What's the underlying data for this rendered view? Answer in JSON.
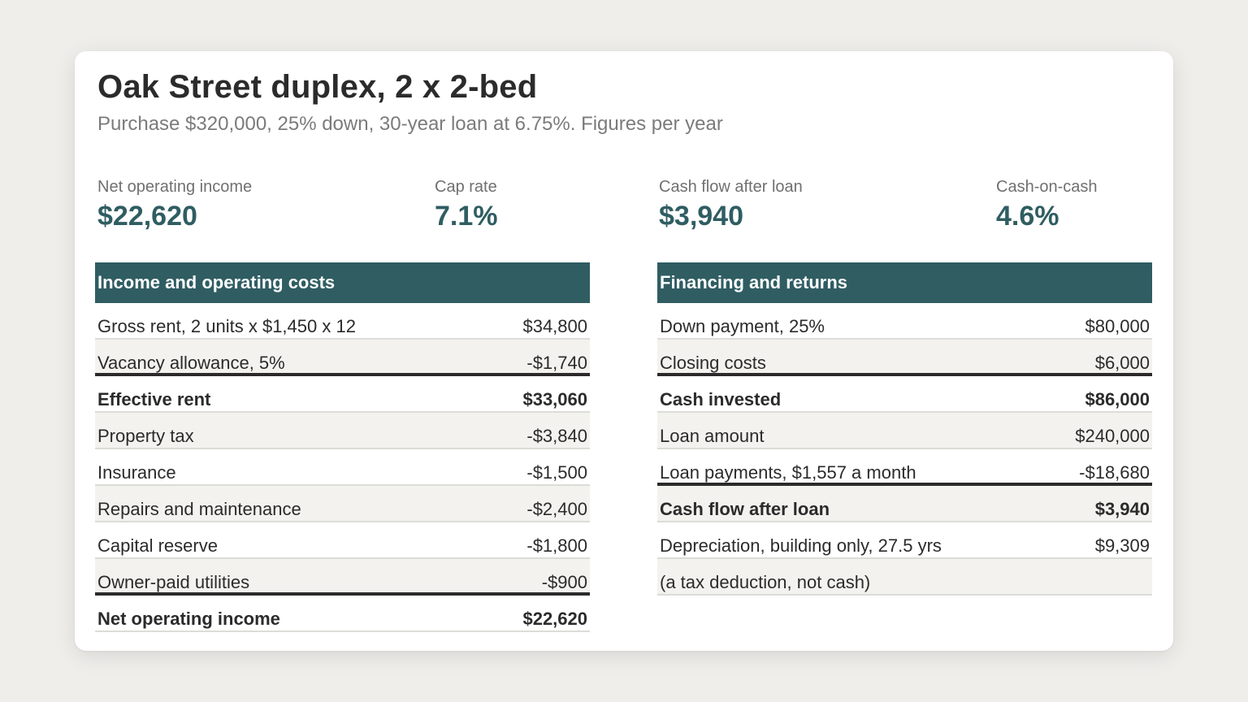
{
  "title": "Oak Street duplex, 2 x 2-bed",
  "subtitle": "Purchase $320,000, 25% down, 30-year loan at 6.75%. Figures per year",
  "kpis": [
    {
      "label": "Net operating income",
      "value": "$22,620"
    },
    {
      "label": "Cap rate",
      "value": "7.1%"
    },
    {
      "label": "Cash flow after loan",
      "value": "$3,940"
    },
    {
      "label": "Cash-on-cash",
      "value": "4.6%"
    }
  ],
  "income_table": {
    "heading": "Income and operating costs",
    "rows": [
      {
        "label": "Gross rent, 2 units x $1,450 x 12",
        "value": "$34,800"
      },
      {
        "label": "Vacancy allowance, 5%",
        "value": "-$1,740"
      },
      {
        "label": "Effective rent",
        "value": "$33,060"
      },
      {
        "label": "Property tax",
        "value": "-$3,840"
      },
      {
        "label": "Insurance",
        "value": "-$1,500"
      },
      {
        "label": "Repairs and maintenance",
        "value": "-$2,400"
      },
      {
        "label": "Capital reserve",
        "value": "-$1,800"
      },
      {
        "label": "Owner-paid utilities",
        "value": "-$900"
      },
      {
        "label": "Net operating income",
        "value": "$22,620"
      }
    ]
  },
  "financing_table": {
    "heading": "Financing and returns",
    "rows": [
      {
        "label": "Down payment, 25%",
        "value": "$80,000"
      },
      {
        "label": "Closing costs",
        "value": "$6,000"
      },
      {
        "label": "Cash invested",
        "value": "$86,000"
      },
      {
        "label": "Loan amount",
        "value": "$240,000"
      },
      {
        "label": "Loan payments, $1,557 a month",
        "value": "-$18,680"
      },
      {
        "label": "Cash flow after loan",
        "value": "$3,940"
      },
      {
        "label": "Depreciation, building only, 27.5 yrs",
        "value": "$9,309"
      },
      {
        "label": "(a tax deduction, not cash)",
        "value": ""
      }
    ]
  },
  "colors": {
    "accent": "#2f5d62",
    "background": "#efeeeb",
    "alt_row": "#f3f2ee"
  }
}
